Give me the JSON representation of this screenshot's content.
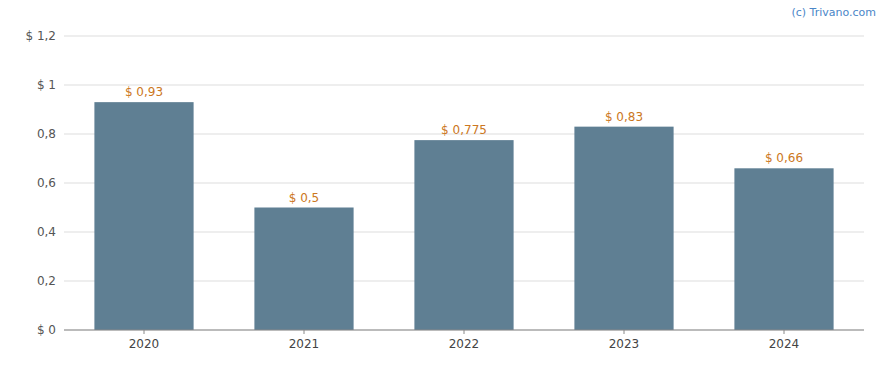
{
  "chart_data": {
    "type": "bar",
    "categories": [
      "2020",
      "2021",
      "2022",
      "2023",
      "2024"
    ],
    "values": [
      0.93,
      0.5,
      0.775,
      0.83,
      0.66
    ],
    "value_labels": [
      "$ 0,93",
      "$ 0,5",
      "$ 0,775",
      "$ 0,83",
      "$ 0,66"
    ],
    "data_labels": true,
    "color": "#5f7f93",
    "ylim": [
      0,
      1.2
    ],
    "yticks": [
      {
        "value": 0,
        "label": "$ 0"
      },
      {
        "value": 0.2,
        "label": "0,2"
      },
      {
        "value": 0.4,
        "label": "0,4"
      },
      {
        "value": 0.6,
        "label": "0,6"
      },
      {
        "value": 0.8,
        "label": "0,8"
      },
      {
        "value": 1.0,
        "label": "$ 1"
      },
      {
        "value": 1.2,
        "label": "$ 1,2"
      }
    ],
    "grid": true,
    "annotations": [
      "(c) Trivano.com"
    ]
  }
}
